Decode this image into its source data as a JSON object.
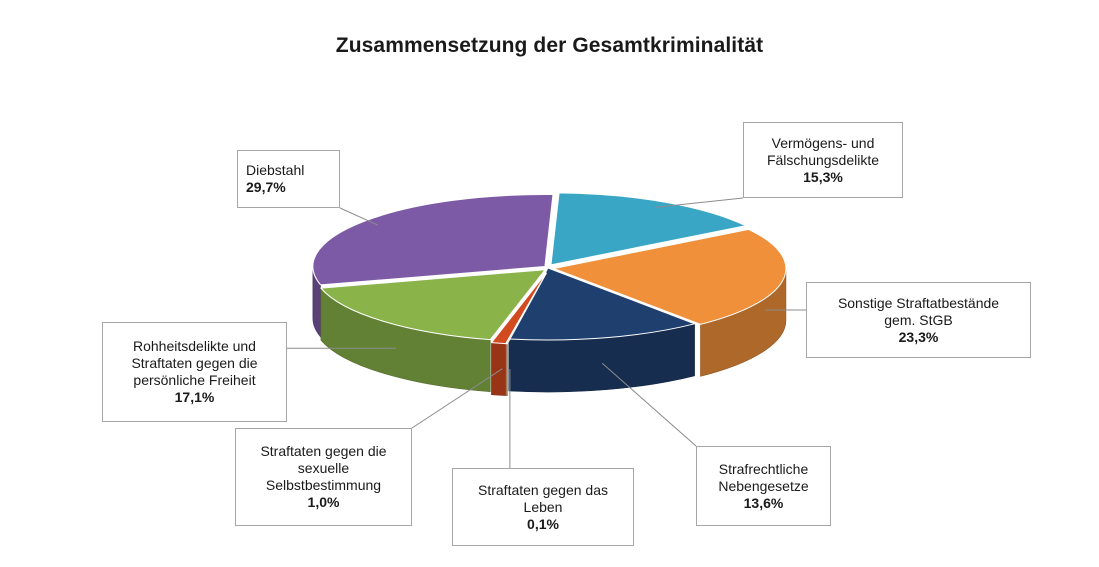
{
  "chart_data": {
    "type": "pie",
    "title": "Zusammensetzung der Gesamtkriminalität",
    "slices": [
      {
        "label": "Vermögens- und\nFälschungsdelikte",
        "pct_label": "15,3%",
        "value": 15.3,
        "color": "#3aa6c6"
      },
      {
        "label": "Sonstige Straftatbestände\ngem. StGB",
        "pct_label": "23,3%",
        "value": 23.3,
        "color": "#f0903a"
      },
      {
        "label": "Strafrechtliche\nNebengesetze",
        "pct_label": "13,6%",
        "value": 13.6,
        "color": "#1f3f6e"
      },
      {
        "label": "Straftaten gegen das\nLeben",
        "pct_label": "0,1%",
        "value": 0.1,
        "color": "#f4b183"
      },
      {
        "label": "Straftaten gegen die\nsexuelle\nSelbstbestimmung",
        "pct_label": "1,0%",
        "value": 1.0,
        "color": "#d24a1f"
      },
      {
        "label": "Rohheitsdelikte und\nStraftaten gegen die\npersönliche Freiheit",
        "pct_label": "17,1%",
        "value": 17.1,
        "color": "#8ab34a"
      },
      {
        "label": "Diebstahl",
        "pct_label": "29,7%",
        "value": 29.7,
        "color": "#7d5aa6"
      }
    ]
  }
}
